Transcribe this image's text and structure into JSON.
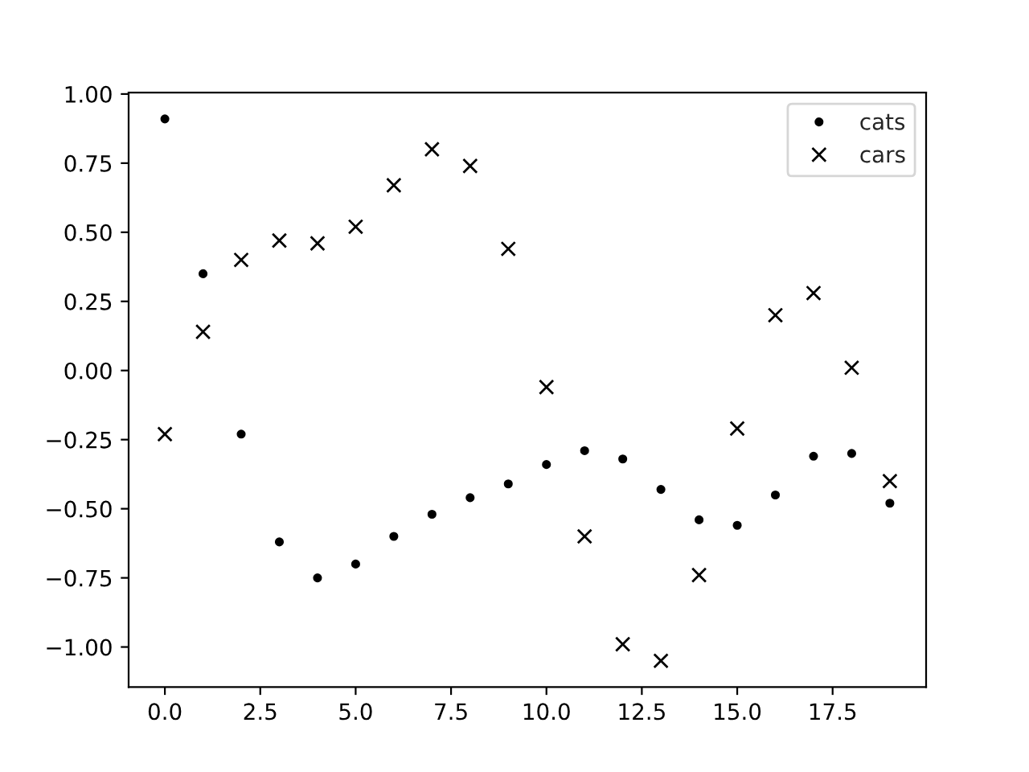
{
  "chart_data": {
    "type": "scatter",
    "x": [
      0,
      1,
      2,
      3,
      4,
      5,
      6,
      7,
      8,
      9,
      10,
      11,
      12,
      13,
      14,
      15,
      16,
      17,
      18,
      19
    ],
    "series": [
      {
        "name": "cats",
        "color": "#000000",
        "marker": "circle",
        "values": [
          0.91,
          0.35,
          -0.23,
          -0.62,
          -0.75,
          -0.7,
          -0.6,
          -0.52,
          -0.46,
          -0.41,
          -0.34,
          -0.29,
          -0.32,
          -0.43,
          -0.54,
          -0.56,
          -0.45,
          -0.31,
          -0.3,
          -0.48
        ]
      },
      {
        "name": "cars",
        "color": "#000000",
        "marker": "cross",
        "values": [
          -0.23,
          0.14,
          0.4,
          0.47,
          0.46,
          0.52,
          0.67,
          0.8,
          0.74,
          0.44,
          -0.06,
          -0.6,
          -0.99,
          -1.05,
          -0.74,
          -0.21,
          0.2,
          0.28,
          0.01,
          -0.4
        ]
      }
    ],
    "xlim": [
      -0.95,
      19.95
    ],
    "xticks": [
      {
        "value": 0,
        "label": "0.0"
      },
      {
        "value": 2.5,
        "label": "2.5"
      },
      {
        "value": 5,
        "label": "5.0"
      },
      {
        "value": 7.5,
        "label": "7.5"
      },
      {
        "value": 10,
        "label": "10.0"
      },
      {
        "value": 12.5,
        "label": "12.5"
      },
      {
        "value": 15,
        "label": "15.0"
      },
      {
        "value": 17.5,
        "label": "17.5"
      }
    ],
    "ylim": [
      -1.145,
      1.005
    ],
    "yticks": [
      {
        "value": -1,
        "label": "−1.00"
      },
      {
        "value": -0.75,
        "label": "−0.75"
      },
      {
        "value": -0.5,
        "label": "−0.50"
      },
      {
        "value": -0.25,
        "label": "−0.25"
      },
      {
        "value": 0,
        "label": "0.00"
      },
      {
        "value": 0.25,
        "label": "0.25"
      },
      {
        "value": 0.5,
        "label": "0.50"
      },
      {
        "value": 0.75,
        "label": "0.75"
      },
      {
        "value": 1,
        "label": "1.00"
      }
    ],
    "grid": false,
    "legend": "top right"
  }
}
